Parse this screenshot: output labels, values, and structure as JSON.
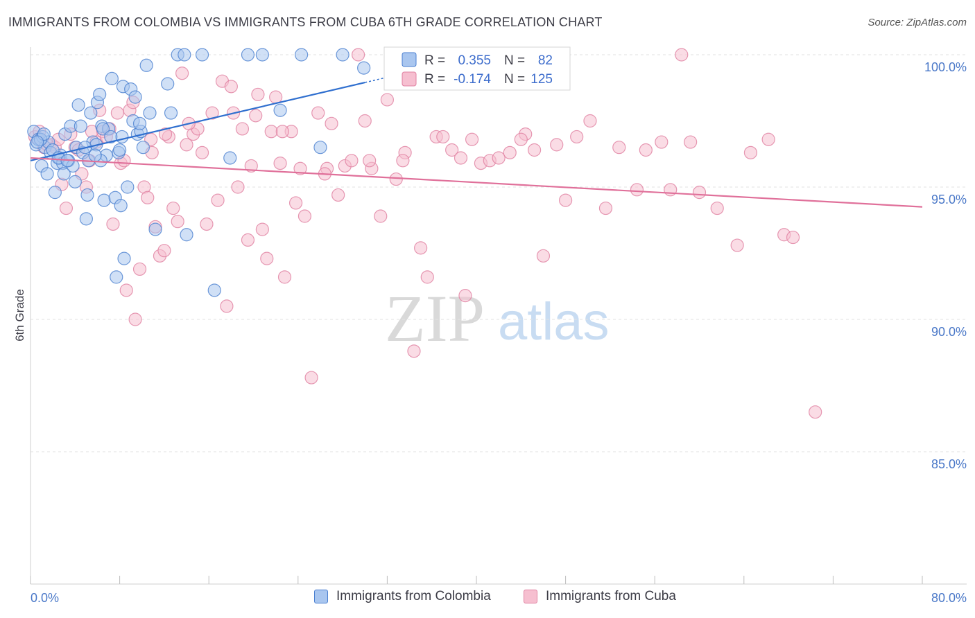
{
  "title": "IMMIGRANTS FROM COLOMBIA VS IMMIGRANTS FROM CUBA 6TH GRADE CORRELATION CHART",
  "source": "Source: ZipAtlas.com",
  "watermark": {
    "zip": "ZIP",
    "atlas": "atlas"
  },
  "colors": {
    "colombia_fill": "#a9c6ef",
    "colombia_stroke": "#4a7fd0",
    "colombia_line": "#2f6fcf",
    "cuba_fill": "#f6bfd0",
    "cuba_stroke": "#e07fa0",
    "cuba_line": "#e0709a"
  },
  "legend": {
    "r_label": "R =",
    "n_label": "N =",
    "colombia": {
      "r": "0.355",
      "n": "82"
    },
    "cuba": {
      "r": "-0.174",
      "n": "125"
    }
  },
  "bottom_legend": {
    "colombia": "Immigrants from Colombia",
    "cuba": "Immigrants from Cuba"
  },
  "chart_data": {
    "type": "scatter",
    "title": "IMMIGRANTS FROM COLOMBIA VS IMMIGRANTS FROM CUBA 6TH GRADE CORRELATION CHART",
    "xlabel": "",
    "ylabel": "6th Grade",
    "xlim": [
      0,
      80
    ],
    "ylim": [
      80.5,
      100.8
    ],
    "x_tick_labels": [
      "0.0%",
      "80.0%"
    ],
    "y_ticks": [
      100,
      95,
      90,
      85
    ],
    "y_tick_labels": [
      "100.0%",
      "95.0%",
      "90.0%",
      "85.0%"
    ],
    "series": [
      {
        "name": "Immigrants from Colombia",
        "r": 0.355,
        "n": 82,
        "trend": {
          "x": [
            0,
            30
          ],
          "y": [
            96.0,
            98.95
          ]
        },
        "points": [
          [
            0.3,
            97.1
          ],
          [
            0.5,
            96.6
          ],
          [
            0.7,
            96.8
          ],
          [
            1.0,
            95.8
          ],
          [
            1.1,
            96.9
          ],
          [
            1.3,
            96.5
          ],
          [
            1.6,
            96.7
          ],
          [
            1.8,
            96.3
          ],
          [
            2.2,
            94.8
          ],
          [
            2.4,
            95.9
          ],
          [
            2.6,
            96.1
          ],
          [
            2.7,
            96.2
          ],
          [
            2.9,
            95.9
          ],
          [
            3.1,
            97.0
          ],
          [
            3.4,
            96.0
          ],
          [
            3.6,
            97.3
          ],
          [
            3.8,
            95.8
          ],
          [
            4.0,
            95.2
          ],
          [
            4.1,
            96.5
          ],
          [
            4.3,
            98.1
          ],
          [
            4.5,
            97.3
          ],
          [
            4.7,
            96.3
          ],
          [
            5.1,
            94.7
          ],
          [
            5.2,
            96.0
          ],
          [
            5.4,
            97.8
          ],
          [
            5.6,
            96.7
          ],
          [
            5.9,
            96.6
          ],
          [
            6.0,
            98.2
          ],
          [
            6.2,
            98.5
          ],
          [
            6.4,
            97.3
          ],
          [
            6.6,
            94.5
          ],
          [
            6.8,
            96.2
          ],
          [
            7.0,
            97.2
          ],
          [
            7.3,
            99.1
          ],
          [
            7.6,
            94.6
          ],
          [
            7.7,
            91.6
          ],
          [
            7.9,
            96.3
          ],
          [
            8.1,
            94.3
          ],
          [
            8.2,
            96.9
          ],
          [
            8.3,
            98.8
          ],
          [
            8.4,
            92.3
          ],
          [
            8.7,
            95.0
          ],
          [
            9.0,
            98.7
          ],
          [
            9.2,
            97.5
          ],
          [
            9.4,
            98.4
          ],
          [
            9.6,
            97.0
          ],
          [
            9.9,
            97.1
          ],
          [
            10.1,
            96.5
          ],
          [
            10.4,
            99.6
          ],
          [
            10.7,
            97.8
          ],
          [
            11.2,
            93.4
          ],
          [
            12.3,
            98.9
          ],
          [
            12.6,
            97.8
          ],
          [
            13.2,
            100.0
          ],
          [
            13.8,
            100.0
          ],
          [
            14.0,
            93.2
          ],
          [
            15.4,
            100.0
          ],
          [
            16.5,
            91.1
          ],
          [
            17.9,
            96.1
          ],
          [
            19.5,
            100.0
          ],
          [
            20.8,
            100.0
          ],
          [
            22.4,
            97.9
          ],
          [
            24.3,
            100.0
          ],
          [
            26.0,
            96.5
          ],
          [
            28.0,
            100.0
          ],
          [
            29.9,
            99.5
          ],
          [
            2.0,
            96.4
          ],
          [
            3.0,
            95.5
          ],
          [
            5.0,
            93.8
          ],
          [
            6.5,
            97.2
          ],
          [
            7.2,
            96.9
          ],
          [
            0.9,
            96.8
          ],
          [
            1.5,
            95.5
          ],
          [
            2.5,
            96.1
          ],
          [
            4.9,
            96.5
          ],
          [
            6.3,
            96.0
          ],
          [
            8.0,
            96.4
          ],
          [
            9.8,
            97.4
          ],
          [
            3.3,
            96.0
          ],
          [
            1.2,
            97.0
          ],
          [
            0.6,
            96.7
          ],
          [
            5.8,
            96.2
          ]
        ]
      },
      {
        "name": "Immigrants from Cuba",
        "r": -0.174,
        "n": 125,
        "trend": {
          "x": [
            0,
            80
          ],
          "y": [
            96.1,
            94.25
          ]
        },
        "points": [
          [
            0.4,
            96.9
          ],
          [
            0.8,
            97.1
          ],
          [
            1.2,
            96.5
          ],
          [
            1.5,
            96.6
          ],
          [
            1.9,
            96.6
          ],
          [
            2.2,
            96.5
          ],
          [
            2.5,
            96.8
          ],
          [
            2.8,
            95.1
          ],
          [
            3.2,
            94.2
          ],
          [
            3.6,
            97.0
          ],
          [
            4.0,
            96.5
          ],
          [
            4.3,
            96.4
          ],
          [
            4.6,
            95.5
          ],
          [
            5.0,
            95.0
          ],
          [
            5.3,
            96.0
          ],
          [
            5.5,
            97.1
          ],
          [
            5.9,
            96.7
          ],
          [
            6.2,
            97.9
          ],
          [
            6.5,
            97.1
          ],
          [
            6.8,
            96.9
          ],
          [
            7.1,
            97.2
          ],
          [
            7.4,
            93.6
          ],
          [
            7.8,
            97.8
          ],
          [
            8.1,
            95.9
          ],
          [
            8.4,
            96.0
          ],
          [
            8.6,
            91.1
          ],
          [
            8.9,
            97.9
          ],
          [
            9.2,
            98.2
          ],
          [
            9.4,
            90.0
          ],
          [
            9.8,
            91.9
          ],
          [
            10.2,
            95.0
          ],
          [
            10.5,
            94.6
          ],
          [
            10.8,
            96.8
          ],
          [
            11.2,
            93.5
          ],
          [
            11.6,
            92.4
          ],
          [
            12.0,
            92.6
          ],
          [
            12.4,
            96.9
          ],
          [
            12.8,
            94.2
          ],
          [
            13.2,
            93.7
          ],
          [
            13.6,
            99.3
          ],
          [
            14.0,
            96.6
          ],
          [
            14.6,
            97.0
          ],
          [
            15.0,
            97.2
          ],
          [
            15.4,
            96.3
          ],
          [
            15.8,
            93.6
          ],
          [
            16.3,
            97.8
          ],
          [
            16.8,
            94.5
          ],
          [
            17.2,
            99.0
          ],
          [
            17.6,
            90.5
          ],
          [
            18.2,
            97.8
          ],
          [
            18.6,
            95.0
          ],
          [
            19.0,
            97.2
          ],
          [
            19.5,
            93.0
          ],
          [
            19.8,
            95.8
          ],
          [
            20.4,
            98.5
          ],
          [
            20.8,
            93.4
          ],
          [
            21.2,
            92.3
          ],
          [
            21.6,
            97.1
          ],
          [
            22.0,
            98.4
          ],
          [
            22.4,
            95.9
          ],
          [
            22.8,
            91.6
          ],
          [
            23.4,
            97.1
          ],
          [
            23.8,
            94.4
          ],
          [
            24.2,
            95.7
          ],
          [
            24.6,
            93.9
          ],
          [
            25.2,
            87.8
          ],
          [
            25.8,
            97.8
          ],
          [
            26.6,
            95.7
          ],
          [
            27.0,
            97.4
          ],
          [
            27.6,
            94.7
          ],
          [
            28.2,
            95.8
          ],
          [
            28.8,
            96.0
          ],
          [
            29.4,
            100.0
          ],
          [
            30.0,
            97.5
          ],
          [
            30.6,
            95.7
          ],
          [
            31.4,
            93.9
          ],
          [
            32.0,
            98.3
          ],
          [
            32.8,
            95.3
          ],
          [
            33.6,
            96.3
          ],
          [
            34.4,
            88.8
          ],
          [
            35.0,
            92.7
          ],
          [
            35.6,
            91.6
          ],
          [
            36.4,
            96.9
          ],
          [
            37.0,
            96.9
          ],
          [
            37.8,
            96.4
          ],
          [
            38.6,
            96.1
          ],
          [
            39.6,
            96.8
          ],
          [
            40.4,
            95.9
          ],
          [
            41.2,
            96.0
          ],
          [
            42.0,
            96.1
          ],
          [
            43.0,
            96.3
          ],
          [
            44.4,
            97.0
          ],
          [
            45.2,
            96.4
          ],
          [
            46.0,
            92.4
          ],
          [
            47.2,
            96.6
          ],
          [
            48.0,
            94.5
          ],
          [
            49.0,
            96.9
          ],
          [
            50.2,
            97.5
          ],
          [
            51.6,
            94.2
          ],
          [
            52.8,
            96.5
          ],
          [
            54.4,
            94.9
          ],
          [
            55.2,
            96.4
          ],
          [
            56.6,
            96.7
          ],
          [
            57.4,
            94.9
          ],
          [
            58.4,
            100.0
          ],
          [
            59.2,
            96.7
          ],
          [
            60.0,
            94.8
          ],
          [
            61.6,
            94.2
          ],
          [
            63.4,
            92.8
          ],
          [
            64.6,
            96.3
          ],
          [
            66.2,
            96.8
          ],
          [
            67.6,
            93.2
          ],
          [
            68.4,
            93.1
          ],
          [
            70.4,
            86.5
          ],
          [
            10.9,
            96.3
          ],
          [
            12.1,
            97.0
          ],
          [
            14.2,
            97.4
          ],
          [
            18.0,
            98.8
          ],
          [
            20.2,
            97.7
          ],
          [
            22.6,
            97.1
          ],
          [
            26.4,
            95.5
          ],
          [
            30.4,
            96.0
          ],
          [
            33.4,
            96.0
          ],
          [
            39.0,
            90.9
          ],
          [
            44.0,
            96.8
          ]
        ]
      }
    ],
    "legend_position": "top-center"
  }
}
